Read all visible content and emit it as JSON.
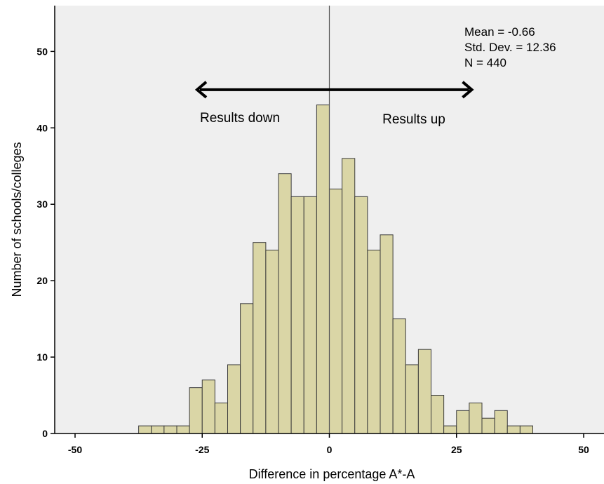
{
  "chart_data": {
    "type": "bar",
    "subtype": "histogram",
    "xlabel": "Difference in percentage A*-A",
    "ylabel": "Number of schools/colleges",
    "xlim": [
      -54,
      54
    ],
    "ylim": [
      0,
      56
    ],
    "xticks": [
      -50,
      -25,
      0,
      25,
      50
    ],
    "yticks": [
      0,
      10,
      20,
      30,
      40,
      50
    ],
    "bin_width": 2.5,
    "bins": [
      {
        "start": -37.5,
        "count": 1
      },
      {
        "start": -35,
        "count": 1
      },
      {
        "start": -32.5,
        "count": 1
      },
      {
        "start": -30,
        "count": 1
      },
      {
        "start": -27.5,
        "count": 6
      },
      {
        "start": -25,
        "count": 7
      },
      {
        "start": -22.5,
        "count": 4
      },
      {
        "start": -20,
        "count": 9
      },
      {
        "start": -17.5,
        "count": 17
      },
      {
        "start": -15,
        "count": 25
      },
      {
        "start": -12.5,
        "count": 24
      },
      {
        "start": -10,
        "count": 34
      },
      {
        "start": -7.5,
        "count": 31
      },
      {
        "start": -5,
        "count": 31
      },
      {
        "start": -2.5,
        "count": 43
      },
      {
        "start": 0,
        "count": 32
      },
      {
        "start": 2.5,
        "count": 36
      },
      {
        "start": 5,
        "count": 31
      },
      {
        "start": 7.5,
        "count": 24
      },
      {
        "start": 10,
        "count": 26
      },
      {
        "start": 12.5,
        "count": 15
      },
      {
        "start": 15,
        "count": 9
      },
      {
        "start": 17.5,
        "count": 11
      },
      {
        "start": 20,
        "count": 5
      },
      {
        "start": 22.5,
        "count": 1
      },
      {
        "start": 25,
        "count": 3
      },
      {
        "start": 27.5,
        "count": 4
      },
      {
        "start": 30,
        "count": 2
      },
      {
        "start": 32.5,
        "count": 3
      },
      {
        "start": 35,
        "count": 1
      },
      {
        "start": 37.5,
        "count": 1
      }
    ],
    "reference_line_x": 0,
    "annotations": {
      "left_label": "Results down",
      "right_label": "Results up",
      "arrow_from_x": -26,
      "arrow_to_x": 28,
      "arrow_y": 45
    },
    "stats": [
      "Mean = -0.66",
      "Std. Dev. = 12.36",
      "N = 440"
    ],
    "colors": {
      "plot_background": "#efefef",
      "bar_fill": "#dad6a6",
      "bar_stroke": "#3a3a3a",
      "axis": "#000000"
    }
  }
}
